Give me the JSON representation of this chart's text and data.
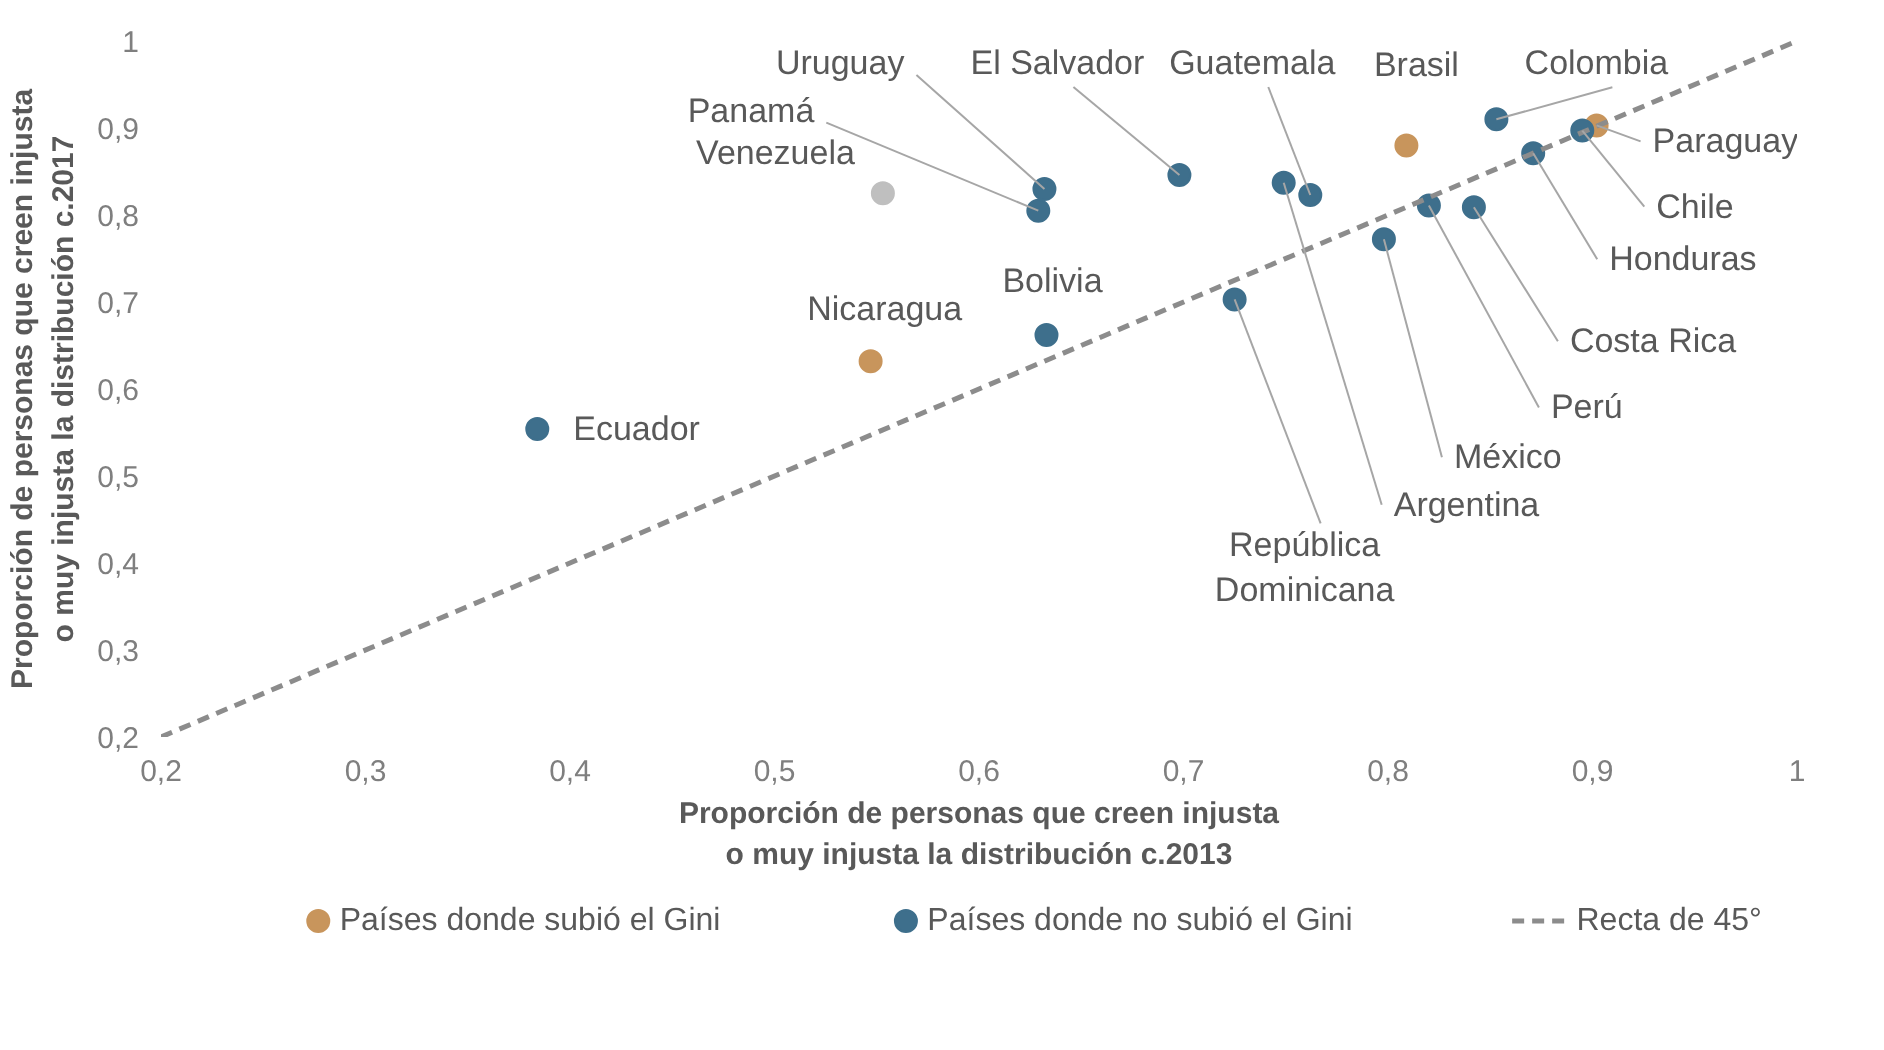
{
  "chart_data": {
    "type": "scatter",
    "xlabel": "Proporción de personas que creen injusta\no muy injusta la distribución c.2013",
    "ylabel": "Proporción de personas que creen injusta\no muy injusta la distribución c.2017",
    "xlim": [
      0.2,
      1
    ],
    "ylim": [
      0.2,
      1
    ],
    "xticks": [
      {
        "value": 0.2,
        "label": "0,2"
      },
      {
        "value": 0.3,
        "label": "0,3"
      },
      {
        "value": 0.4,
        "label": "0,4"
      },
      {
        "value": 0.5,
        "label": "0,5"
      },
      {
        "value": 0.6,
        "label": "0,6"
      },
      {
        "value": 0.7,
        "label": "0,7"
      },
      {
        "value": 0.8,
        "label": "0,8"
      },
      {
        "value": 0.9,
        "label": "0,9"
      },
      1
    ],
    "yticks": [
      {
        "value": 0.2,
        "label": "0,2"
      },
      {
        "value": 0.3,
        "label": "0,3"
      },
      {
        "value": 0.4,
        "label": "0,4"
      },
      {
        "value": 0.5,
        "label": "0,5"
      },
      {
        "value": 0.6,
        "label": "0,6"
      },
      {
        "value": 0.7,
        "label": "0,7"
      },
      {
        "value": 0.8,
        "label": "0,8"
      },
      {
        "value": 0.9,
        "label": "0,9"
      },
      1
    ],
    "grid": false,
    "legend": "bottom",
    "marker": "circle",
    "series": [
      {
        "name": "Países donde subió el Gini",
        "color": "#c8955c",
        "x": [
          0.547,
          0.809,
          0.902
        ],
        "values": [
          0.632,
          0.88,
          0.903
        ]
      },
      {
        "name": "Países donde no subió el Gini",
        "color": "#3e6f8c",
        "x": [
          0.384,
          0.633,
          0.629,
          0.632,
          0.698,
          0.725,
          0.749,
          0.762,
          0.798,
          0.82,
          0.842,
          0.853,
          0.871,
          0.895
        ],
        "values": [
          0.554,
          0.662,
          0.805,
          0.83,
          0.846,
          0.703,
          0.837,
          0.823,
          0.772,
          0.811,
          0.809,
          0.91,
          0.871,
          0.897
        ]
      },
      {
        "color": "#bfbfbf",
        "x": [
          0.553
        ],
        "values": [
          0.825
        ]
      },
      {
        "type": "line",
        "name": "Recta de 45°",
        "color": "#8c8c8c",
        "line_style": "dashed",
        "marker": "none",
        "x": [
          0.2,
          1
        ],
        "values": [
          0.2,
          1
        ]
      }
    ],
    "annotations": [
      {
        "text": "Ecuador",
        "x": 0.384,
        "y": 0.554
      },
      {
        "text": "Nicaragua",
        "x": 0.547,
        "y": 0.632
      },
      {
        "text": "Venezuela",
        "x": 0.553,
        "y": 0.825
      },
      {
        "text": "Bolivia",
        "x": 0.633,
        "y": 0.662
      },
      {
        "text": "Panamá",
        "x": 0.629,
        "y": 0.805
      },
      {
        "text": "Uruguay",
        "x": 0.632,
        "y": 0.83
      },
      {
        "text": "El Salvador",
        "x": 0.698,
        "y": 0.846
      },
      {
        "text": "República\nDominicana",
        "x": 0.725,
        "y": 0.703
      },
      {
        "text": "Argentina",
        "x": 0.749,
        "y": 0.837
      },
      {
        "text": "Guatemala",
        "x": 0.762,
        "y": 0.823
      },
      {
        "text": "México",
        "x": 0.798,
        "y": 0.772
      },
      {
        "text": "Perú",
        "x": 0.82,
        "y": 0.811
      },
      {
        "text": "Brasil",
        "x": 0.809,
        "y": 0.88
      },
      {
        "text": "Costa Rica",
        "x": 0.842,
        "y": 0.809
      },
      {
        "text": "Colombia",
        "x": 0.853,
        "y": 0.91
      },
      {
        "text": "Honduras",
        "x": 0.871,
        "y": 0.871
      },
      {
        "text": "Chile",
        "x": 0.895,
        "y": 0.897
      },
      {
        "text": "Paraguay",
        "x": 0.902,
        "y": 0.903
      }
    ]
  }
}
